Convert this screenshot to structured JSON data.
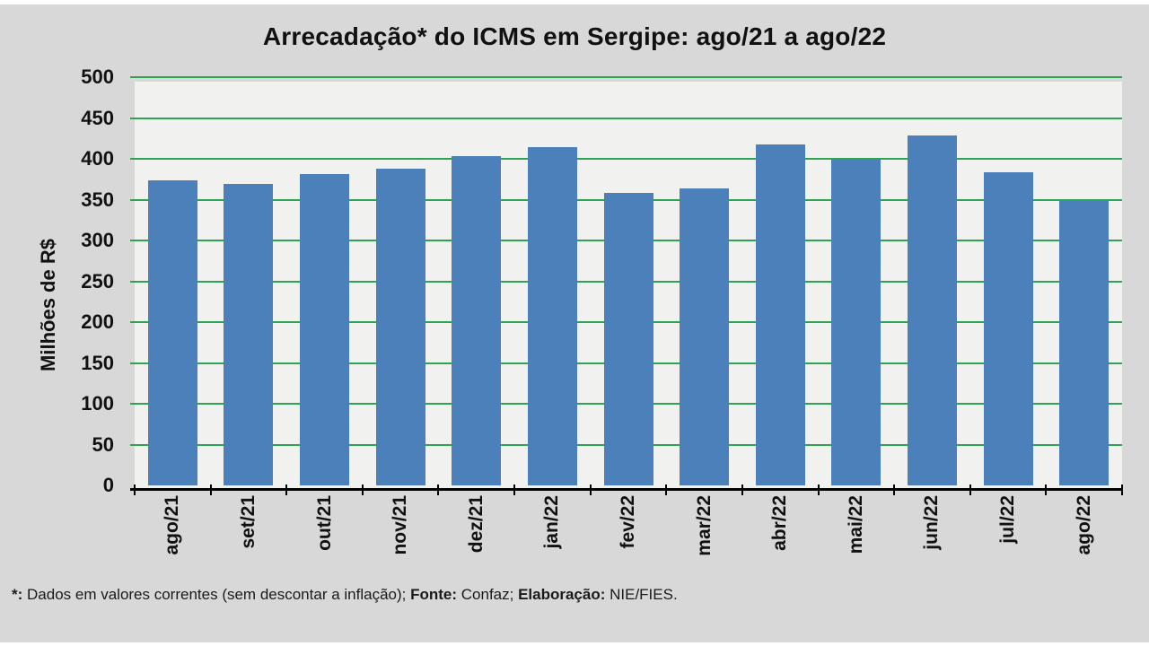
{
  "title": "Arrecadação* do ICMS em Sergipe: ago/21 a ago/22",
  "chart_data": {
    "type": "bar",
    "title": "Arrecadação* do ICMS em Sergipe: ago/21 a ago/22",
    "xlabel": "",
    "ylabel": "Milhões de R$",
    "categories": [
      "ago/21",
      "set/21",
      "out/21",
      "nov/21",
      "dez/21",
      "jan/22",
      "fev/22",
      "mar/22",
      "abr/22",
      "mai/22",
      "jun/22",
      "jul/22",
      "ago/22"
    ],
    "values": [
      374,
      369,
      381,
      388,
      403,
      414,
      358,
      364,
      418,
      400,
      429,
      383,
      350
    ],
    "ylim": [
      0,
      500
    ],
    "ytick_step": 50,
    "yticks": [
      0,
      50,
      100,
      150,
      200,
      250,
      300,
      350,
      400,
      450,
      500
    ],
    "grid": "horizontal-only",
    "legend": "none",
    "colors": {
      "bar_fill": "#4c80ba",
      "gridline_green": "#2ea450",
      "plot_background": "#f1f1ef",
      "canvas_background": "#d8d8d8",
      "axis_line": "#000000",
      "text": "#111111"
    }
  },
  "footnote": {
    "asterisk_label": "*:",
    "text1": " Dados em valores correntes (sem descontar a inflação); ",
    "fonte_label": "Fonte:",
    "text2": " Confaz; ",
    "elaboracao_label": "Elaboração:",
    "text3": " NIE/FIES."
  }
}
